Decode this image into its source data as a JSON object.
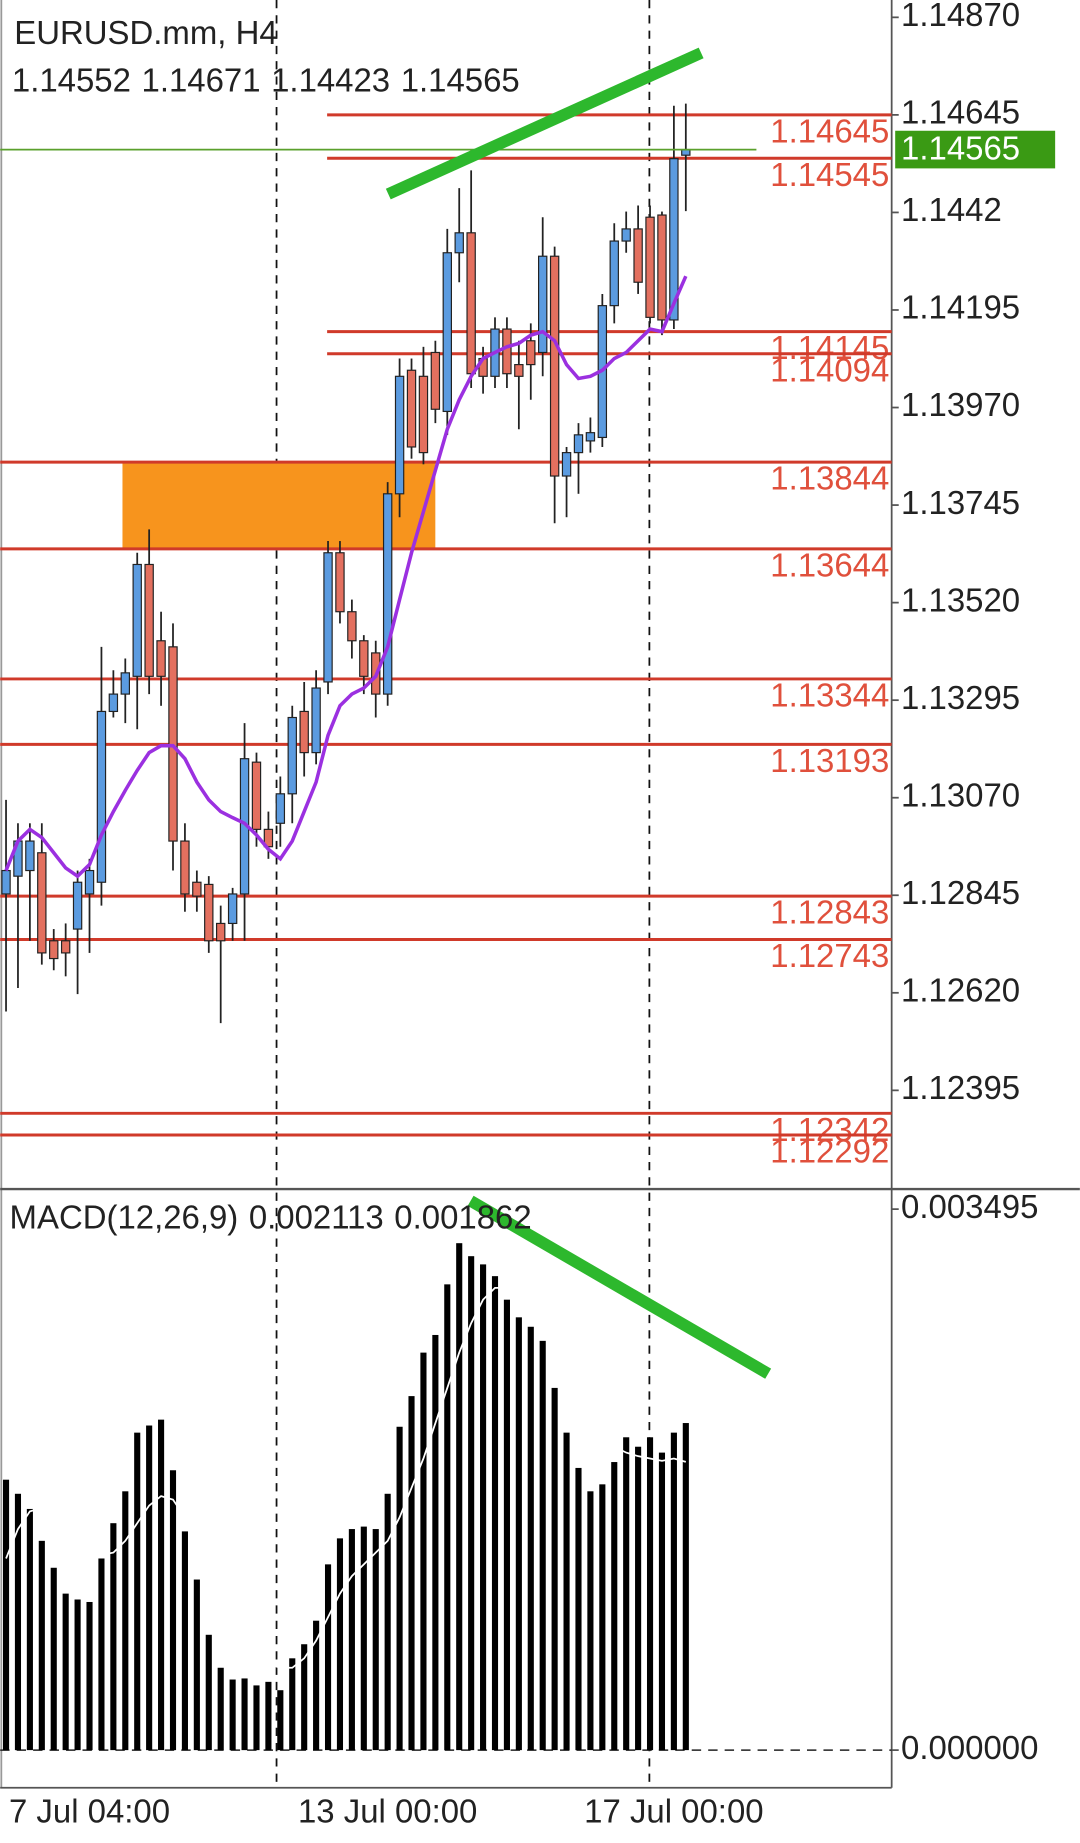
{
  "chart_data": [
    {
      "type": "candlestick",
      "title": "EURUSD.mm, H4",
      "categories": [
        null,
        null,
        null,
        null,
        null,
        null,
        null,
        "7 Jul 04:00",
        null,
        null,
        null,
        null,
        null,
        null,
        null,
        null,
        null,
        null,
        null,
        null,
        null,
        null,
        null,
        null,
        null,
        null,
        null,
        null,
        null,
        null,
        null,
        null,
        "13 Jul 00:00",
        null,
        null,
        null,
        null,
        null,
        null,
        null,
        null,
        null,
        null,
        null,
        null,
        null,
        null,
        null,
        null,
        null,
        null,
        null,
        null,
        null,
        null,
        null,
        "17 Jul 00:00",
        null
      ],
      "open": [
        1.12848,
        1.12889,
        1.12902,
        1.12943,
        1.1274,
        1.1274,
        1.12767,
        1.12848,
        1.12875,
        1.13269,
        1.13309,
        1.1335,
        1.13608,
        1.13432,
        1.13418,
        1.1297,
        1.12875,
        1.1287,
        1.1278,
        1.1278,
        1.12848,
        1.13152,
        1.12997,
        1.13011,
        1.13079,
        1.13269,
        1.13174,
        1.13337,
        1.13635,
        1.13499,
        1.13432,
        1.13404,
        1.13309,
        1.13771,
        1.14056,
        1.14042,
        1.14097,
        1.13961,
        1.14327,
        1.14373,
        1.14083,
        1.14042,
        1.14151,
        1.14069,
        1.14124,
        1.14097,
        1.14319,
        1.13812,
        1.13866,
        1.13893,
        1.13901,
        1.14205,
        1.14354,
        1.14382,
        1.14409,
        1.14414,
        1.14172,
        1.14552
      ],
      "high": [
        1.13065,
        1.13011,
        1.13011,
        1.13011,
        1.12767,
        1.1278,
        1.12902,
        1.12929,
        1.13418,
        1.13364,
        1.13391,
        1.13635,
        1.13689,
        1.13499,
        1.13472,
        1.13011,
        1.12902,
        1.12889,
        1.12821,
        1.12862,
        1.13242,
        1.13174,
        1.13038,
        1.13119,
        1.13282,
        1.13337,
        1.13364,
        1.13662,
        1.13662,
        1.13527,
        1.13445,
        1.13432,
        1.13798,
        1.14083,
        1.14083,
        1.1411,
        1.14124,
        1.14382,
        1.14476,
        1.14517,
        1.1411,
        1.14178,
        1.14178,
        1.14124,
        1.14164,
        1.14409,
        1.14341,
        1.13879,
        1.13934,
        1.13947,
        1.14232,
        1.14395,
        1.14422,
        1.14436,
        1.14436,
        1.14422,
        1.14666,
        1.14671
      ],
      "low": [
        1.12577,
        1.12631,
        1.1274,
        1.12685,
        1.12672,
        1.12658,
        1.12617,
        1.12712,
        1.12821,
        1.13255,
        1.13242,
        1.13228,
        1.13309,
        1.13282,
        1.12902,
        1.12807,
        1.12807,
        1.12712,
        1.1255,
        1.1274,
        1.1274,
        1.12957,
        1.12929,
        1.12957,
        1.13011,
        1.13119,
        1.13147,
        1.13309,
        1.13472,
        1.13391,
        1.13309,
        1.13255,
        1.13282,
        1.13717,
        1.13852,
        1.13839,
        1.13934,
        1.13907,
        1.14259,
        1.14015,
        1.14002,
        1.14015,
        1.14015,
        1.1392,
        1.13988,
        1.14042,
        1.13703,
        1.13717,
        1.13771,
        1.13866,
        1.13879,
        1.14164,
        1.14327,
        1.14232,
        1.14164,
        1.14137,
        1.14151,
        1.14423
      ],
      "close": [
        1.12902,
        1.1297,
        1.1297,
        1.12712,
        1.12699,
        1.12712,
        1.12875,
        1.12902,
        1.13269,
        1.13309,
        1.13358,
        1.13608,
        1.1335,
        1.1335,
        1.1297,
        1.12848,
        1.12843,
        1.1274,
        1.1274,
        1.12848,
        1.1316,
        1.12997,
        1.12957,
        1.13079,
        1.13255,
        1.13174,
        1.13323,
        1.13635,
        1.13499,
        1.13432,
        1.1335,
        1.13309,
        1.13771,
        1.14042,
        1.13879,
        1.13866,
        1.13966,
        1.14327,
        1.14373,
        1.14048,
        1.14042,
        1.14151,
        1.14048,
        1.14042,
        1.14069,
        1.14319,
        1.13812,
        1.13866,
        1.13907,
        1.13912,
        1.14205,
        1.14354,
        1.14382,
        1.14259,
        1.14178,
        1.14172,
        1.14544,
        1.14565
      ],
      "up_color": "#5b9be0",
      "down_color": "#e3705f",
      "ma": {
        "color": "#9b30e0",
        "values": [
          1.12902,
          1.1297,
          1.12997,
          1.12978,
          1.12943,
          1.12908,
          1.12889,
          1.12916,
          1.12984,
          1.13038,
          1.13087,
          1.13133,
          1.13174,
          1.1319,
          1.1319,
          1.1316,
          1.13106,
          1.13065,
          1.13038,
          1.13024,
          1.13011,
          1.12984,
          1.12951,
          1.12929,
          1.1297,
          1.13038,
          1.13106,
          1.13214,
          1.13282,
          1.13309,
          1.13323,
          1.1335,
          1.13418,
          1.13527,
          1.13635,
          1.1373,
          1.13825,
          1.1392,
          1.13988,
          1.14042,
          1.14083,
          1.14097,
          1.1411,
          1.14118,
          1.14137,
          1.14145,
          1.14124,
          1.14069,
          1.14037,
          1.14042,
          1.14056,
          1.14083,
          1.14097,
          1.14124,
          1.14151,
          1.14145,
          1.1421,
          1.14273
        ]
      },
      "levels": [
        1.14645,
        1.14545,
        1.14145,
        1.14094,
        1.13844,
        1.13644,
        1.13344,
        1.13193,
        1.12843,
        1.12743,
        1.12342,
        1.12292
      ],
      "level_color": "#d03a2a",
      "zone": [
        1.13644,
        1.13844
      ],
      "zone_color": "#f7941d",
      "last_price": 1.14565,
      "last_price_color": "#3a9a14",
      "ylim": [
        1.1217,
        1.1491
      ],
      "yticks": [
        {
          "value": 1.1487,
          "label": "1.14870"
        },
        1.14645,
        1.1442,
        1.14195,
        {
          "value": 1.1397,
          "label": "1.13970"
        },
        1.13745,
        {
          "value": 1.1352,
          "label": "1.13520"
        },
        1.13295,
        {
          "value": 1.1307,
          "label": "1.13070"
        },
        1.12845,
        {
          "value": 1.1262,
          "label": "1.12620"
        },
        1.12395
      ]
    },
    {
      "type": "macd",
      "title": "MACD(12,26,9)",
      "color": "#000000",
      "values": [
        0.001747,
        0.001656,
        0.001558,
        0.001352,
        0.001178,
        0.001011,
        0.000973,
        0.000957,
        0.001238,
        0.001466,
        0.001672,
        0.002051,
        0.002097,
        0.002135,
        0.001808,
        0.001413,
        0.001102,
        0.000745,
        0.000532,
        0.000456,
        0.000463,
        0.000418,
        0.000441,
        0.000387,
        0.000593,
        0.000684,
        0.000836,
        0.0012,
        0.001368,
        0.001428,
        0.001444,
        0.001428,
        0.001656,
        0.002089,
        0.002287,
        0.002568,
        0.002682,
        0.003009,
        0.003275,
        0.003191,
        0.003138,
        0.003062,
        0.00291,
        0.002796,
        0.002735,
        0.002644,
        0.00234,
        0.002051,
        0.001823,
        0.001672,
        0.001717,
        0.001861,
        0.002021,
        0.00196,
        0.002021,
        0.001922,
        0.002051,
        0.002113
      ],
      "signal": {
        "color": "#ffffff",
        "values": [
          0.001238,
          0.001428,
          0.001542,
          0.001565,
          0.001504,
          0.001428,
          0.001352,
          0.001292,
          0.001261,
          0.001276,
          0.001352,
          0.001466,
          0.00158,
          0.001641,
          0.001618,
          0.001504,
          0.001352,
          0.001162,
          0.000973,
          0.000821,
          0.000707,
          0.000608,
          0.000555,
          0.000532,
          0.000532,
          0.000593,
          0.000707,
          0.000859,
          0.001011,
          0.001124,
          0.0012,
          0.001276,
          0.001352,
          0.001504,
          0.001694,
          0.001884,
          0.002112,
          0.00234,
          0.002568,
          0.002758,
          0.00291,
          0.002986,
          0.002986,
          0.002948,
          0.002872,
          0.002796,
          0.002644,
          0.002492,
          0.00234,
          0.002188,
          0.002051,
          0.00196,
          0.001922,
          0.001899,
          0.001884,
          0.001869,
          0.001884,
          0.001862
        ]
      },
      "ylim": [
        -0.000243,
        0.003617
      ],
      "yticks": [
        0.003495,
        {
          "value": 0,
          "label": "0.000000"
        }
      ]
    }
  ]
}
